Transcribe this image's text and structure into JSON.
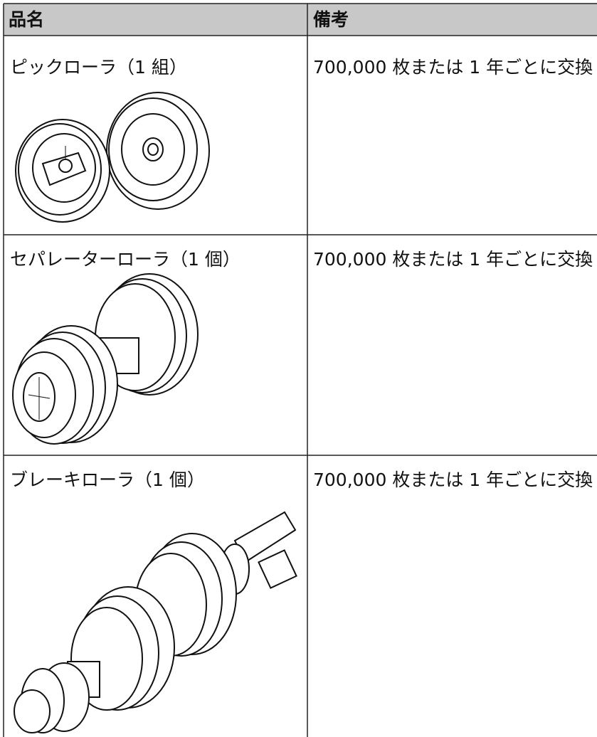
{
  "table": {
    "header": [
      "品名",
      "備考"
    ],
    "rows": [
      [
        "ピックローラ（1 組）",
        "700,000 枚または 1 年ごとに交換"
      ],
      [
        "セパレーターローラ（1 個）",
        "700,000 枚または 1 年ごとに交換"
      ],
      [
        "ブレーキローラ（1 個）",
        "700,000 枚または 1 年ごとに交換"
      ]
    ]
  }
}
